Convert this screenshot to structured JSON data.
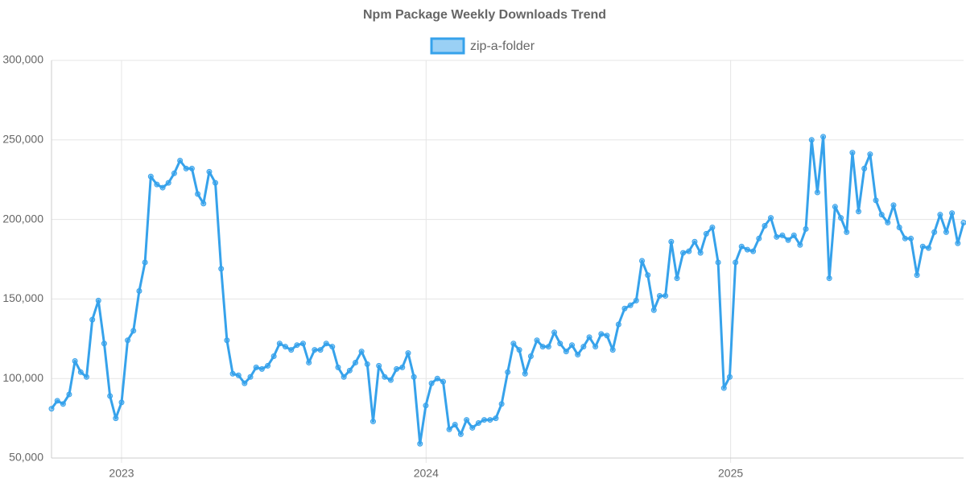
{
  "chart_data": {
    "type": "line",
    "title": "Npm Package Weekly Downloads Trend",
    "x": [
      2022.77,
      2022.789,
      2022.808,
      2022.828,
      2022.847,
      2022.866,
      2022.885,
      2022.904,
      2022.924,
      2022.943,
      2022.962,
      2022.981,
      2023.0,
      2023.02,
      2023.039,
      2023.058,
      2023.077,
      2023.096,
      2023.116,
      2023.135,
      2023.154,
      2023.173,
      2023.192,
      2023.212,
      2023.231,
      2023.25,
      2023.269,
      2023.288,
      2023.308,
      2023.327,
      2023.346,
      2023.365,
      2023.384,
      2023.404,
      2023.423,
      2023.442,
      2023.461,
      2023.48,
      2023.5,
      2023.519,
      2023.538,
      2023.557,
      2023.576,
      2023.596,
      2023.615,
      2023.634,
      2023.653,
      2023.672,
      2023.692,
      2023.711,
      2023.73,
      2023.749,
      2023.768,
      2023.788,
      2023.807,
      2023.826,
      2023.845,
      2023.864,
      2023.884,
      2023.903,
      2023.922,
      2023.941,
      2023.96,
      2023.98,
      2023.999,
      2024.018,
      2024.037,
      2024.056,
      2024.076,
      2024.095,
      2024.114,
      2024.133,
      2024.152,
      2024.172,
      2024.191,
      2024.21,
      2024.229,
      2024.248,
      2024.268,
      2024.287,
      2024.306,
      2024.325,
      2024.344,
      2024.364,
      2024.383,
      2024.402,
      2024.421,
      2024.44,
      2024.46,
      2024.479,
      2024.498,
      2024.517,
      2024.536,
      2024.556,
      2024.575,
      2024.594,
      2024.613,
      2024.632,
      2024.652,
      2024.671,
      2024.69,
      2024.709,
      2024.728,
      2024.748,
      2024.767,
      2024.786,
      2024.805,
      2024.824,
      2024.844,
      2024.863,
      2024.882,
      2024.901,
      2024.92,
      2024.94,
      2024.959,
      2024.978,
      2024.997,
      2025.016,
      2025.036,
      2025.055,
      2025.074,
      2025.093,
      2025.112,
      2025.132,
      2025.151,
      2025.17,
      2025.189,
      2025.208,
      2025.228,
      2025.247,
      2025.266,
      2025.285,
      2025.304,
      2025.324,
      2025.343,
      2025.362,
      2025.381,
      2025.4,
      2025.42,
      2025.439,
      2025.458,
      2025.477,
      2025.496,
      2025.516,
      2025.535,
      2025.554,
      2025.573,
      2025.592,
      2025.612,
      2025.631,
      2025.65,
      2025.669,
      2025.688,
      2025.708,
      2025.727,
      2025.746,
      2025.765
    ],
    "series": [
      {
        "name": "zip-a-folder",
        "color": "#36a2eb",
        "values": [
          81000,
          86000,
          84000,
          90000,
          111000,
          104000,
          101000,
          137000,
          149000,
          122000,
          89000,
          75000,
          85000,
          124000,
          130000,
          155000,
          173000,
          227000,
          222000,
          220000,
          223000,
          229000,
          237000,
          232000,
          232000,
          216000,
          210000,
          230000,
          223000,
          169000,
          124000,
          103000,
          102000,
          97000,
          101000,
          107000,
          106000,
          108000,
          114000,
          122000,
          120000,
          118000,
          121000,
          122000,
          110000,
          118000,
          118000,
          122000,
          120000,
          107000,
          101000,
          105000,
          110000,
          117000,
          109000,
          73000,
          108000,
          101000,
          99000,
          106000,
          107000,
          116000,
          101000,
          59000,
          83000,
          97000,
          100000,
          98000,
          68000,
          71000,
          65000,
          74000,
          69000,
          72000,
          74000,
          74000,
          75000,
          84000,
          104000,
          122000,
          118000,
          103000,
          114000,
          124000,
          120000,
          120000,
          129000,
          122000,
          117000,
          121000,
          115000,
          120000,
          126000,
          120000,
          128000,
          127000,
          118000,
          134000,
          144000,
          146000,
          149000,
          174000,
          165000,
          143000,
          152000,
          152000,
          186000,
          163000,
          179000,
          180000,
          186000,
          179000,
          191000,
          195000,
          173000,
          94000,
          101000,
          173000,
          183000,
          181000,
          180000,
          188000,
          196000,
          201000,
          189000,
          190000,
          187000,
          190000,
          184000,
          194000,
          250000,
          217000,
          252000,
          163000,
          208000,
          201000,
          192000,
          242000,
          205000,
          232000,
          241000,
          212000,
          203000,
          198000,
          209000,
          195000,
          188000,
          188000,
          165000,
          183000,
          182000,
          192000,
          203000,
          192000,
          204000,
          185000,
          198000
        ]
      }
    ],
    "xlim": [
      2022.77,
      2025.765
    ],
    "xticks": [
      2023,
      2024,
      2025
    ],
    "ylim": [
      50000,
      300000
    ],
    "yticks": [
      {
        "value": 50000,
        "label": "50,000"
      },
      {
        "value": 100000,
        "label": "100,000"
      },
      {
        "value": 150000,
        "label": "150,000"
      },
      {
        "value": 200000,
        "label": "200,000"
      },
      {
        "value": 250000,
        "label": "250,000"
      },
      {
        "value": 300000,
        "label": "300,000"
      }
    ],
    "grid": true,
    "legend": "top"
  }
}
